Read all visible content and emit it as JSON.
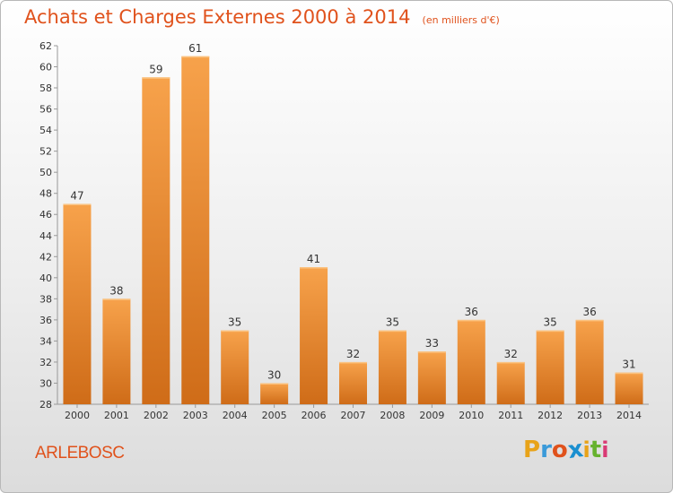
{
  "header": {
    "title": "Achats et Charges Externes 2000 à 2014",
    "subtitle": "(en milliers d'€)"
  },
  "footer": {
    "commune": "ARLEBOSC",
    "logo_letters": [
      "P",
      "r",
      "o",
      "x",
      "i",
      "t",
      "i"
    ],
    "logo_colors": [
      "#e8a319",
      "#3a9ad9",
      "#e0521c",
      "#1a8fd0",
      "#e8a319",
      "#66b22e",
      "#d93a74"
    ]
  },
  "colors": {
    "bar_light": "#f7a24b",
    "bar_dark": "#cf6c18",
    "accent": "#e0521c",
    "text": "#333333"
  },
  "chart_data": {
    "type": "bar",
    "title": "Achats et Charges Externes 2000 à 2014",
    "subtitle": "(en milliers d'€)",
    "categories": [
      "2000",
      "2001",
      "2002",
      "2003",
      "2004",
      "2005",
      "2006",
      "2007",
      "2008",
      "2009",
      "2010",
      "2011",
      "2012",
      "2013",
      "2014"
    ],
    "values": [
      47,
      38,
      59,
      61,
      35,
      30,
      41,
      32,
      35,
      33,
      36,
      32,
      35,
      36,
      31
    ],
    "ylim": [
      28,
      62
    ],
    "yticks": [
      28,
      30,
      32,
      34,
      36,
      38,
      40,
      42,
      44,
      46,
      48,
      50,
      52,
      54,
      56,
      58,
      60,
      62
    ],
    "grid": false,
    "data_labels": true
  }
}
